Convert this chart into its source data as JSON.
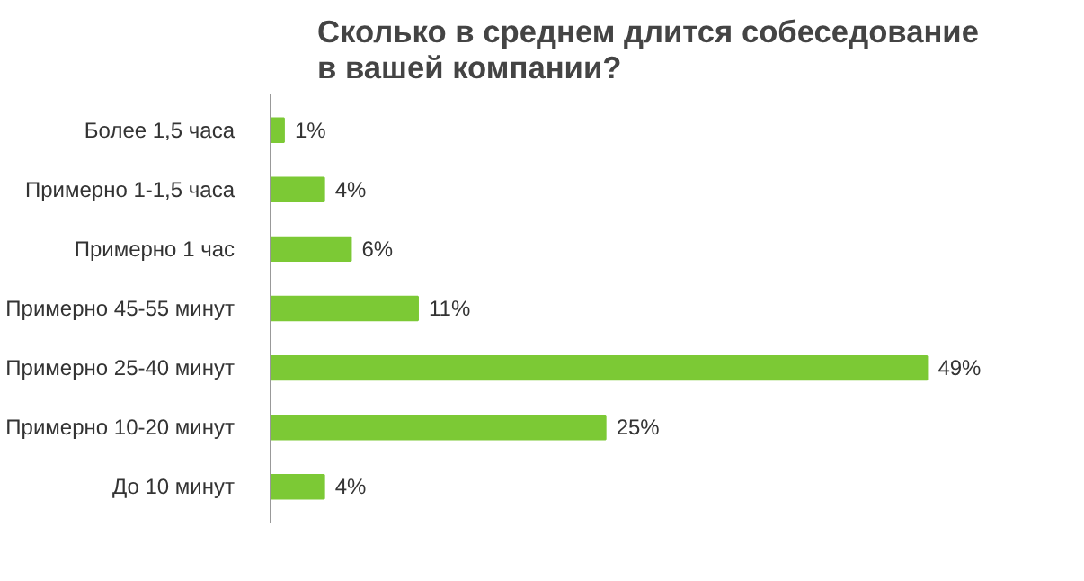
{
  "chart_data": {
    "type": "bar",
    "orientation": "horizontal",
    "title": "Сколько в среднем длится собеседование\nв вашей компании?",
    "categories": [
      "Более 1,5 часа",
      "Примерно 1-1,5 часа",
      "Примерно 1 час",
      "Примерно 45-55 минут",
      "Примерно 25-40 минут",
      "Примерно 10-20 минут",
      "До 10 минут"
    ],
    "values": [
      1,
      4,
      6,
      11,
      49,
      25,
      4
    ],
    "value_labels": [
      "1%",
      "4%",
      "6%",
      "11%",
      "49%",
      "25%",
      "4%"
    ],
    "color": "#7cc935",
    "grid": false,
    "tick_labels": "y"
  }
}
